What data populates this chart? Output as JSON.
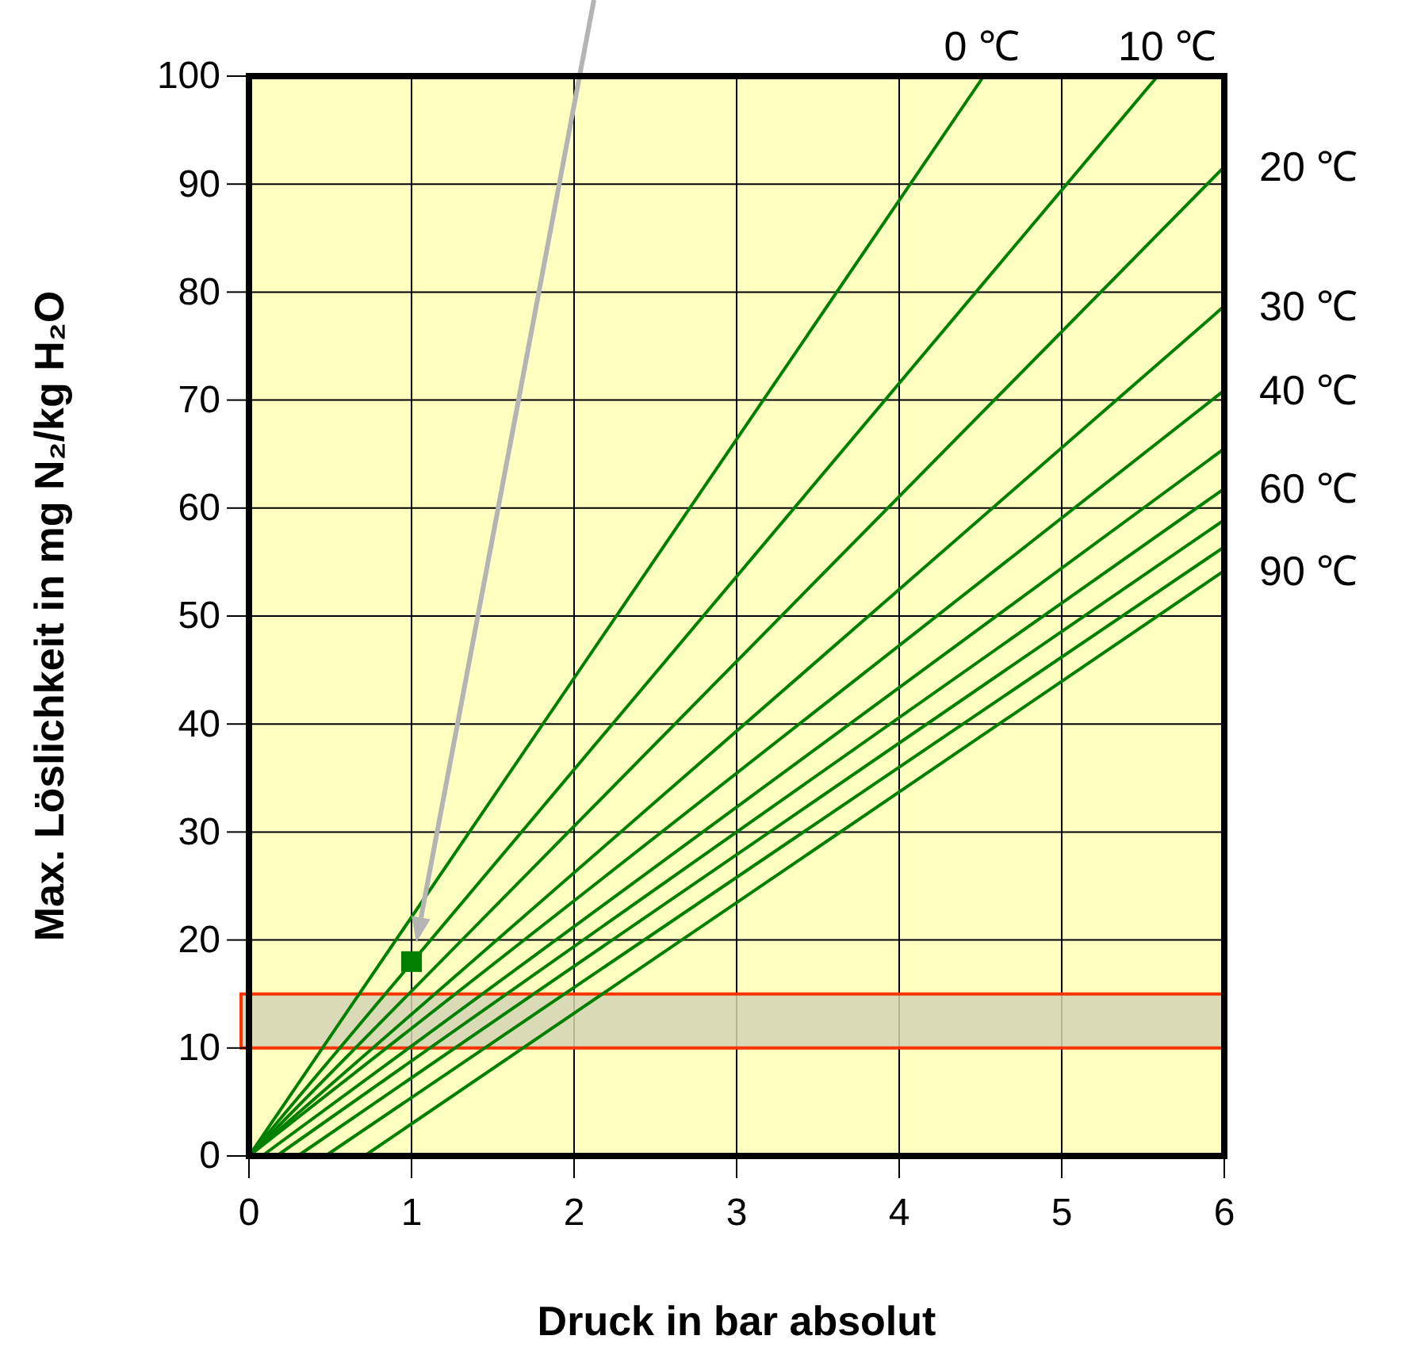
{
  "chart_data": {
    "type": "line",
    "xlabel": "Druck in bar absolut",
    "ylabel": "Max. Löslichkeit in mg N₂/kg H₂O",
    "xlim": [
      0,
      6
    ],
    "ylim": [
      0,
      100
    ],
    "xticks": [
      0,
      1,
      2,
      3,
      4,
      5,
      6
    ],
    "yticks": [
      0,
      10,
      20,
      30,
      40,
      50,
      60,
      70,
      80,
      90,
      100
    ],
    "grid": true,
    "marker": "none",
    "line_style": "solid",
    "series": [
      {
        "color": "#008000",
        "x": [
          0,
          4.52
        ],
        "values": [
          0,
          100
        ]
      },
      {
        "color": "#008000",
        "x": [
          0,
          5.59
        ],
        "values": [
          0,
          100
        ]
      },
      {
        "color": "#008000",
        "x": [
          0,
          6
        ],
        "values": [
          0,
          91.6
        ]
      },
      {
        "color": "#008000",
        "x": [
          0,
          6
        ],
        "values": [
          0,
          78.7
        ]
      },
      {
        "color": "#008000",
        "x": [
          0,
          6
        ],
        "values": [
          0,
          70.9
        ]
      },
      {
        "color": "#008000",
        "x": [
          0.08,
          6
        ],
        "values": [
          0,
          65.5
        ]
      },
      {
        "color": "#008000",
        "x": [
          0.17,
          6
        ],
        "values": [
          0,
          61.8
        ]
      },
      {
        "color": "#008000",
        "x": [
          0.3,
          6
        ],
        "values": [
          0,
          58.9
        ]
      },
      {
        "color": "#008000",
        "x": [
          0.47,
          6
        ],
        "values": [
          0,
          56.4
        ]
      },
      {
        "color": "#008000",
        "x": [
          0.71,
          6
        ],
        "values": [
          0,
          54.2
        ]
      },
      {
        "type": "scatter",
        "color": "#008000",
        "marker": "square",
        "x": [
          1
        ],
        "values": [
          18
        ]
      }
    ],
    "bands": [
      {
        "axis": "y",
        "from": 10,
        "to": 15,
        "color": "#d4d4b4"
      }
    ],
    "annotations": [
      {
        "text": "0 ℃",
        "x": 4.52,
        "y": 100
      },
      {
        "text": "10 ℃",
        "x": 5.59,
        "y": 100
      },
      {
        "text": "20 ℃",
        "x": 6,
        "y": 91.6
      },
      {
        "text": "30 ℃",
        "x": 6,
        "y": 78.7
      },
      {
        "text": "40 ℃",
        "x": 6,
        "y": 70.9
      },
      {
        "text": "60 ℃",
        "x": 6,
        "y": 61.8
      },
      {
        "text": "90 ℃",
        "x": 6,
        "y": 54.2
      }
    ]
  }
}
